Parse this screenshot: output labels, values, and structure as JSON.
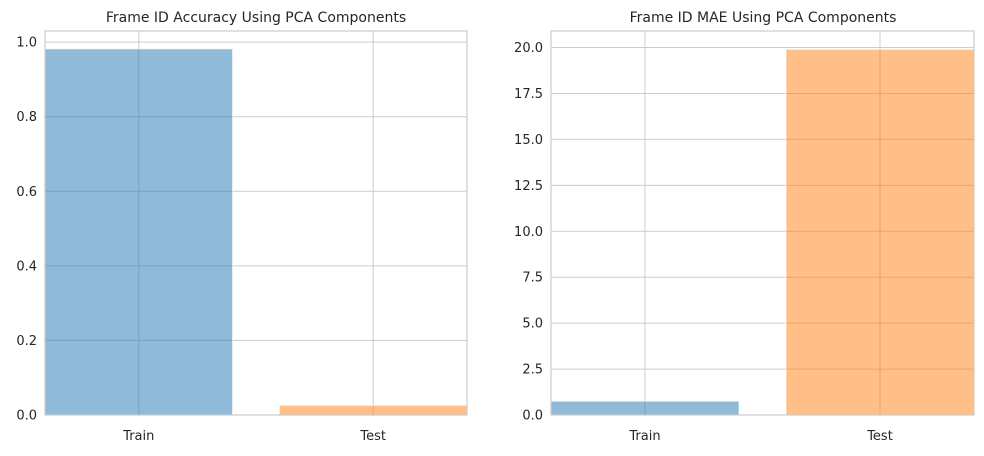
{
  "colors": {
    "train": "#1f77b4",
    "test": "#ff7f0e",
    "grid": "#cccccc",
    "frame": "#cccccc"
  },
  "chart_data": [
    {
      "type": "bar",
      "title": "Frame ID Accuracy Using PCA Components",
      "categories": [
        "Train",
        "Test"
      ],
      "values": [
        0.982,
        0.026
      ],
      "ylim": [
        0,
        1.03
      ],
      "yticks": [
        0.0,
        0.2,
        0.4,
        0.6,
        0.8,
        1.0
      ],
      "ytick_labels": [
        "0.0",
        "0.2",
        "0.4",
        "0.6",
        "0.8",
        "1.0"
      ],
      "bar_colors": [
        "train",
        "test"
      ],
      "bar_alpha": 0.5,
      "grid": true
    },
    {
      "type": "bar",
      "title": "Frame ID MAE Using PCA Components",
      "categories": [
        "Train",
        "Test"
      ],
      "values": [
        0.75,
        19.9
      ],
      "ylim": [
        0,
        20.9
      ],
      "yticks": [
        0.0,
        2.5,
        5.0,
        7.5,
        10.0,
        12.5,
        15.0,
        17.5,
        20.0
      ],
      "ytick_labels": [
        "0.0",
        "2.5",
        "5.0",
        "7.5",
        "10.0",
        "12.5",
        "15.0",
        "17.5",
        "20.0"
      ],
      "bar_colors": [
        "train",
        "test"
      ],
      "bar_alpha": 0.5,
      "grid": true
    }
  ]
}
